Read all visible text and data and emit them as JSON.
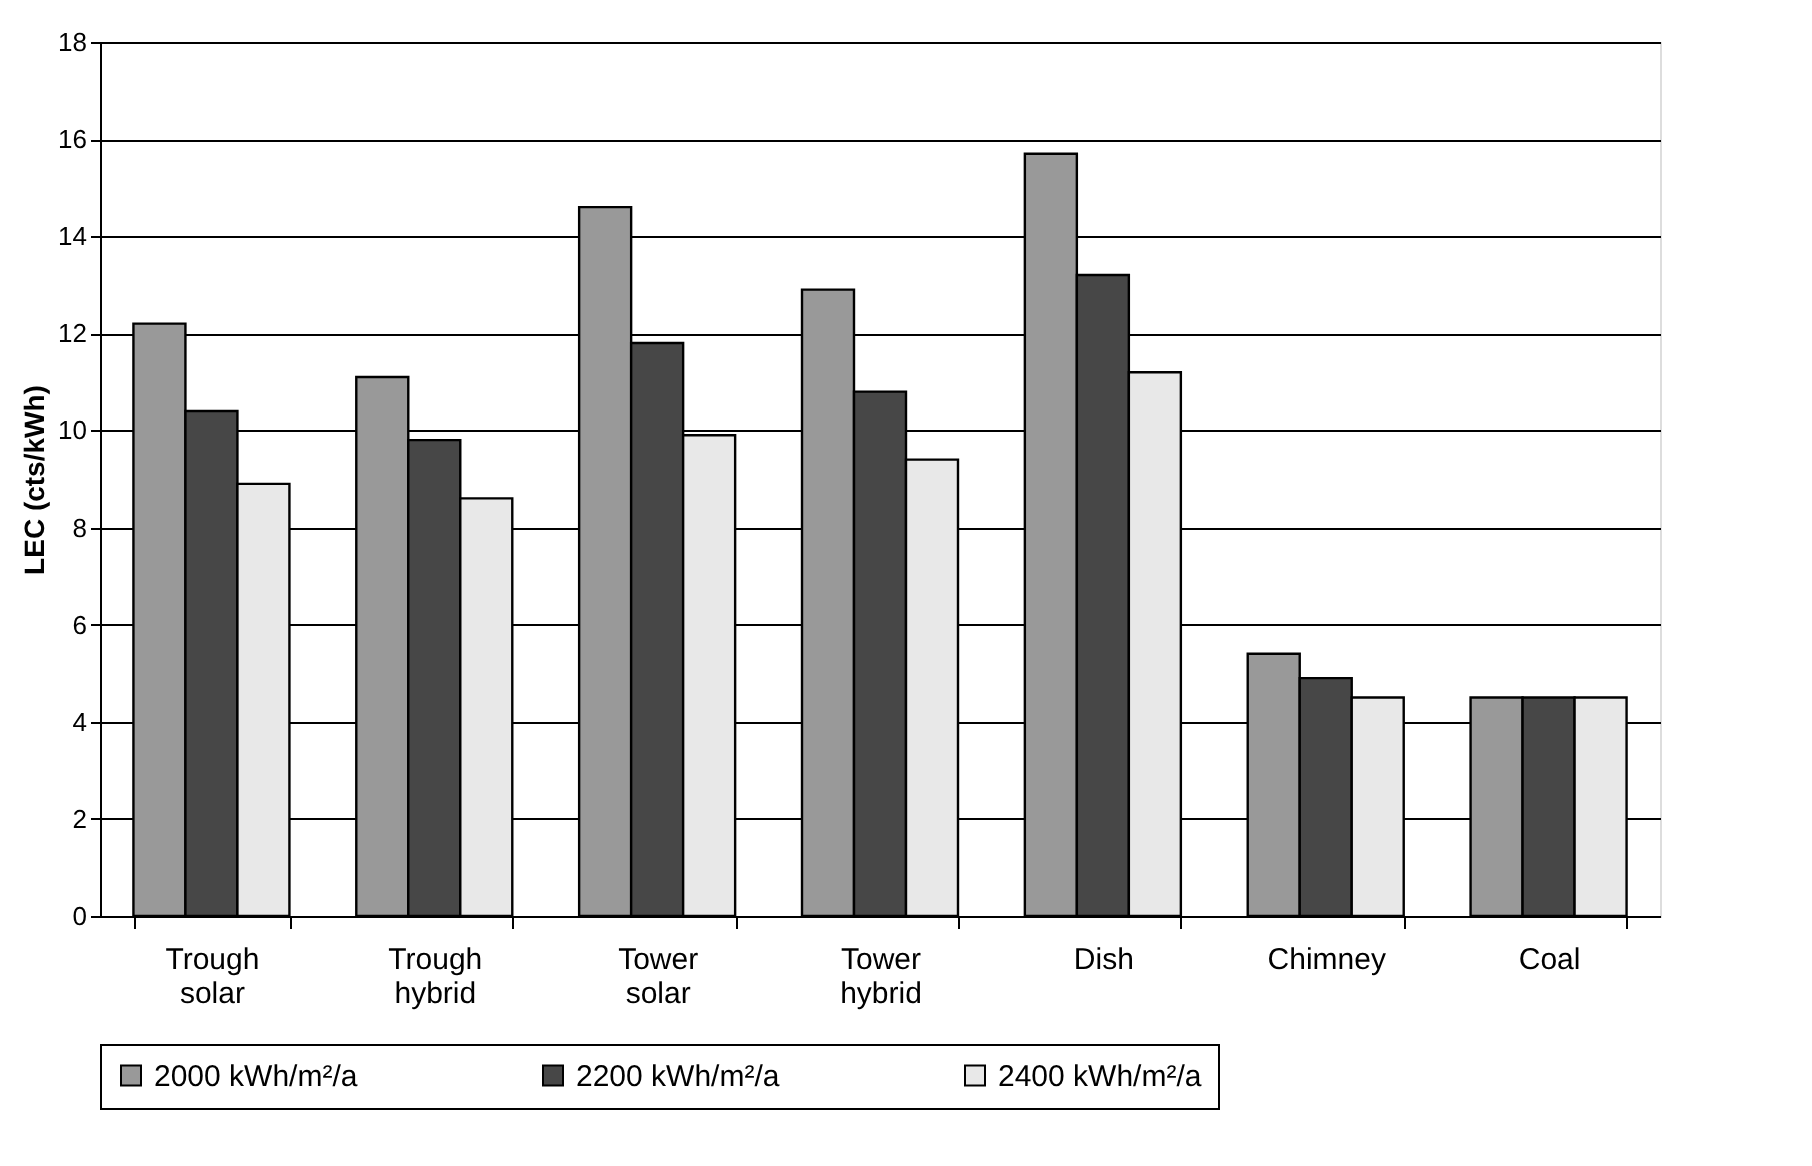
{
  "chart_data": {
    "type": "bar",
    "ylabel": "LEC (cts/kWh)",
    "categories": [
      "Trough solar",
      "Trough hybrid",
      "Tower solar",
      "Tower hybrid",
      "Dish",
      "Chimney",
      "Coal"
    ],
    "series": [
      {
        "name": "2000 kWh/m²/a",
        "color": "#999999",
        "values": [
          12.2,
          11.1,
          14.6,
          12.9,
          15.7,
          5.4,
          4.5
        ]
      },
      {
        "name": "2200 kWh/m²/a",
        "color": "#474747",
        "values": [
          10.4,
          9.8,
          11.8,
          10.8,
          13.2,
          4.9,
          4.5
        ]
      },
      {
        "name": "2400 kWh/m²/a",
        "color": "#e8e8e8",
        "values": [
          8.9,
          8.6,
          9.9,
          9.4,
          11.2,
          4.5,
          4.5
        ]
      }
    ],
    "ylim": [
      0,
      18
    ],
    "yticks": [
      0,
      2,
      4,
      6,
      8,
      10,
      12,
      14,
      16,
      18
    ],
    "grid": "y",
    "legend": "bottom"
  }
}
